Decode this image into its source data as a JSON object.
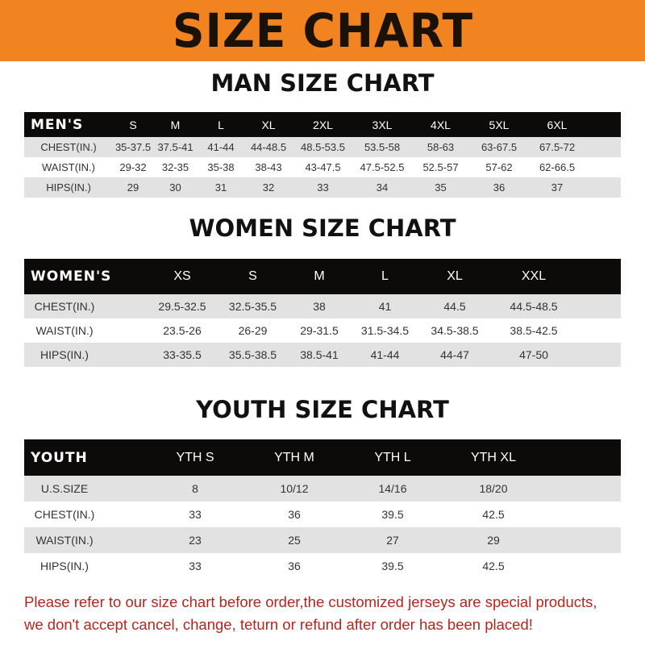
{
  "title": "SIZE CHART",
  "men": {
    "title": "MAN SIZE CHART",
    "header": "MEN'S",
    "sizes": [
      "S",
      "M",
      "L",
      "XL",
      "2XL",
      "3XL",
      "4XL",
      "5XL",
      "6XL"
    ],
    "rows": [
      {
        "label": "CHEST(IN.)",
        "values": [
          "35-37.5",
          "37.5-41",
          "41-44",
          "44-48.5",
          "48.5-53.5",
          "53.5-58",
          "58-63",
          "63-67.5",
          "67.5-72"
        ]
      },
      {
        "label": "WAIST(IN.)",
        "values": [
          "29-32",
          "32-35",
          "35-38",
          "38-43",
          "43-47.5",
          "47.5-52.5",
          "52.5-57",
          "57-62",
          "62-66.5"
        ]
      },
      {
        "label": "HIPS(IN.)",
        "values": [
          "29",
          "30",
          "31",
          "32",
          "33",
          "34",
          "35",
          "36",
          "37"
        ]
      }
    ]
  },
  "women": {
    "title": "WOMEN SIZE CHART",
    "header": "WOMEN'S",
    "sizes": [
      "XS",
      "S",
      "M",
      "L",
      "XL",
      "XXL"
    ],
    "rows": [
      {
        "label": "CHEST(IN.)",
        "values": [
          "29.5-32.5",
          "32.5-35.5",
          "38",
          "41",
          "44.5",
          "44.5-48.5"
        ]
      },
      {
        "label": "WAIST(IN.)",
        "values": [
          "23.5-26",
          "26-29",
          "29-31.5",
          "31.5-34.5",
          "34.5-38.5",
          "38.5-42.5"
        ]
      },
      {
        "label": "HIPS(IN.)",
        "values": [
          "33-35.5",
          "35.5-38.5",
          "38.5-41",
          "41-44",
          "44-47",
          "47-50"
        ]
      }
    ]
  },
  "youth": {
    "title": "YOUTH SIZE CHART",
    "header": "YOUTH",
    "sizes": [
      "YTH S",
      "YTH M",
      "YTH L",
      "YTH XL"
    ],
    "rows": [
      {
        "label": "U.S.SIZE",
        "values": [
          "8",
          "10/12",
          "14/16",
          "18/20"
        ]
      },
      {
        "label": "CHEST(IN.)",
        "values": [
          "33",
          "36",
          "39.5",
          "42.5"
        ]
      },
      {
        "label": "WAIST(IN.)",
        "values": [
          "23",
          "25",
          "27",
          "29"
        ]
      },
      {
        "label": "HIPS(IN.)",
        "values": [
          "33",
          "36",
          "39.5",
          "42.5"
        ]
      }
    ]
  },
  "notice": [
    "Please refer to our size chart before order,the customized jerseys are special products,",
    "we don't accept cancel, change, teturn or refund after order has been placed!"
  ]
}
